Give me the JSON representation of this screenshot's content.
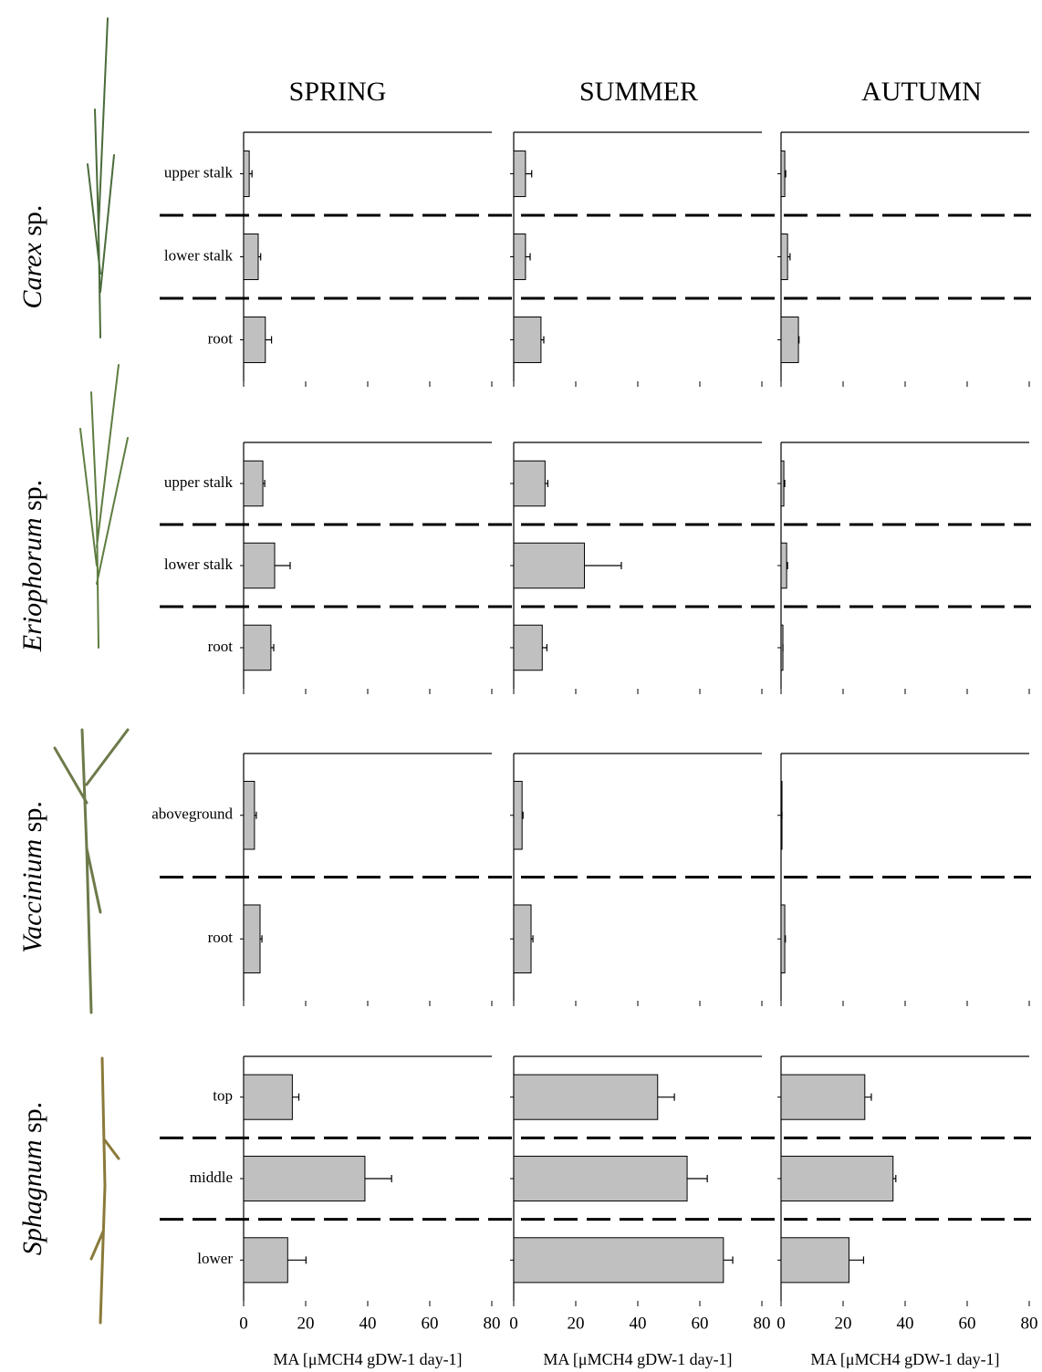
{
  "seasons": [
    "SPRING",
    "SUMMER",
    "AUTUMN"
  ],
  "axes": {
    "xlim": [
      0,
      80
    ],
    "xticks": [
      0,
      20,
      40,
      60,
      80
    ],
    "xlabel": "MA [μMCH4 gDW-1 day-1]"
  },
  "chart_data": [
    {
      "type": "bar",
      "genus": "Carex",
      "suffix": "sp.",
      "color": "#c0c0c0",
      "categories": [
        "upper stalk",
        "lower stalk",
        "root"
      ],
      "panels": [
        {
          "values": [
            1.8,
            4.7,
            7
          ],
          "errors": [
            0.9,
            0.8,
            2
          ]
        },
        {
          "values": [
            3.8,
            3.8,
            8.8
          ],
          "errors": [
            2,
            1.5,
            0.9
          ]
        },
        {
          "values": [
            1.2,
            2.1,
            5.6
          ],
          "errors": [
            0.3,
            0.8,
            0.2
          ]
        }
      ]
    },
    {
      "type": "bar",
      "genus": "Eriophorum",
      "suffix": "sp.",
      "color": "#c0c0c0",
      "categories": [
        "upper stalk",
        "lower stalk",
        "root"
      ],
      "panels": [
        {
          "values": [
            6.2,
            10,
            8.8
          ],
          "errors": [
            0.6,
            5,
            0.9
          ]
        },
        {
          "values": [
            10.1,
            22.8,
            9.2
          ],
          "errors": [
            0.9,
            11.9,
            1.5
          ]
        },
        {
          "values": [
            0.9,
            1.8,
            0.6
          ],
          "errors": [
            0.3,
            0.3,
            0
          ]
        }
      ]
    },
    {
      "type": "bar",
      "genus": "Vaccinium",
      "suffix": "sp.",
      "color": "#c0c0c0",
      "categories": [
        "aboveground",
        "root"
      ],
      "panels": [
        {
          "values": [
            3.5,
            5.3
          ],
          "errors": [
            0.6,
            0.6
          ]
        },
        {
          "values": [
            2.7,
            5.6
          ],
          "errors": [
            0.3,
            0.6
          ]
        },
        {
          "values": [
            0.3,
            1.2
          ],
          "errors": [
            0,
            0.2
          ]
        }
      ]
    },
    {
      "type": "bar",
      "genus": "Sphagnum",
      "suffix": "sp.",
      "color": "#c0c0c0",
      "categories": [
        "top",
        "middle",
        "lower"
      ],
      "panels": [
        {
          "values": [
            15.7,
            39.1,
            14.2
          ],
          "errors": [
            2.1,
            8.6,
            5.9
          ]
        },
        {
          "values": [
            46.4,
            55.9,
            67.6
          ],
          "errors": [
            5.4,
            6.5,
            3
          ]
        },
        {
          "values": [
            27,
            36.1,
            21.9
          ],
          "errors": [
            2.1,
            0.9,
            4.7
          ]
        }
      ]
    }
  ]
}
